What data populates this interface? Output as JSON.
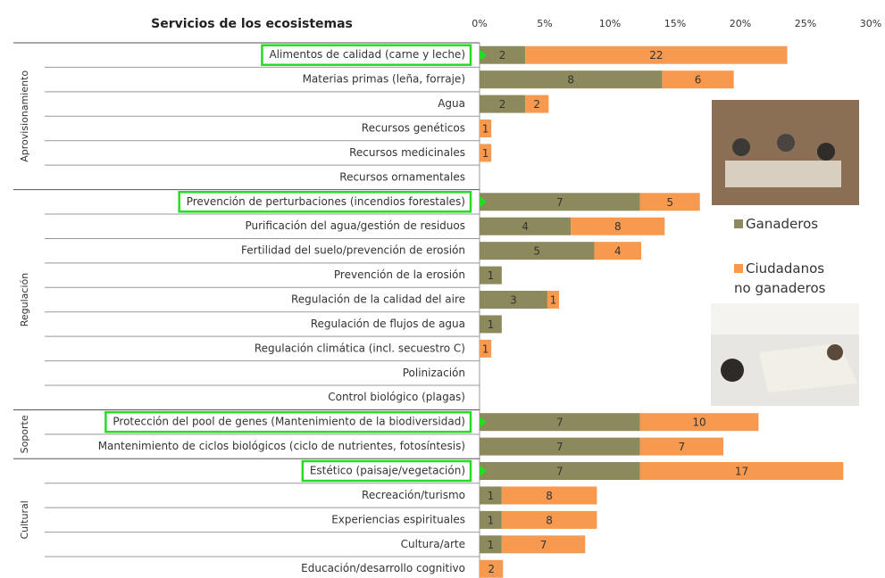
{
  "chart_data": {
    "type": "stacked-bar-horizontal",
    "title": "Servicios de los ecosistemas",
    "groups": [
      {
        "name": "Aprovisionamiento",
        "categories": [
          "Alimentos de calidad (carne y leche)",
          "Materias primas (leña, forraje)",
          "Agua",
          "Recursos genéticos",
          "Recursos medicinales",
          "Recursos ornamentales"
        ]
      },
      {
        "name": "Regulación",
        "categories": [
          "Prevención de perturbaciones (incendios forestales)",
          "Purificación del agua/gestión de residuos",
          "Fertilidad del suelo/prevención de erosión",
          "Prevención de la erosión",
          "Regulación de la calidad del aire",
          "Regulación de flujos de agua",
          "Regulación climática (incl. secuestro C)",
          "Polinización",
          "Control biológico (plagas)"
        ]
      },
      {
        "name": "Soporte",
        "categories": [
          "Protección del pool de genes (Mantenimiento de la biodiversidad)",
          "Mantenimiento de ciclos biológicos (ciclo de nutrientes, fotosíntesis)"
        ]
      },
      {
        "name": "Cultural",
        "categories": [
          "Estético (paisaje/vegetación)",
          "Recreación/turismo",
          "Experiencias espirituales",
          "Cultura/arte",
          "Educación/desarrollo cognitivo"
        ]
      }
    ],
    "series": [
      {
        "name": "Ganaderos",
        "color": "#8c8a5c",
        "values": [
          3.5,
          14.0,
          3.5,
          null,
          null,
          null,
          12.3,
          7.0,
          8.8,
          1.7,
          5.2,
          1.7,
          null,
          null,
          null,
          12.3,
          12.3,
          12.3,
          1.7,
          1.7,
          1.7,
          null
        ],
        "counts": [
          2,
          8,
          2,
          null,
          null,
          null,
          7,
          4,
          5,
          1,
          3,
          1,
          null,
          null,
          null,
          7,
          7,
          7,
          1,
          1,
          1,
          null
        ]
      },
      {
        "name": "Ciudadanos no ganaderos",
        "color": "#f79a4f",
        "values": [
          20.1,
          5.5,
          1.8,
          0.9,
          0.9,
          null,
          4.6,
          7.2,
          3.6,
          null,
          0.9,
          null,
          0.9,
          null,
          null,
          9.1,
          6.4,
          15.6,
          7.3,
          7.3,
          6.4,
          1.8
        ],
        "counts": [
          22,
          6,
          2,
          1,
          1,
          null,
          5,
          8,
          4,
          null,
          1,
          null,
          1,
          null,
          null,
          10,
          7,
          17,
          8,
          8,
          7,
          2
        ]
      }
    ],
    "xlim": [
      0,
      30
    ],
    "xticks": [
      {
        "value": 0,
        "label": "0%"
      },
      {
        "value": 5,
        "label": "5%"
      },
      {
        "value": 10,
        "label": "10%"
      },
      {
        "value": 15,
        "label": "15%"
      },
      {
        "value": 20,
        "label": "20%"
      },
      {
        "value": 25,
        "label": "25%"
      },
      {
        "value": 30,
        "label": "30%"
      }
    ],
    "highlight": [
      0,
      6,
      15,
      17
    ]
  }
}
